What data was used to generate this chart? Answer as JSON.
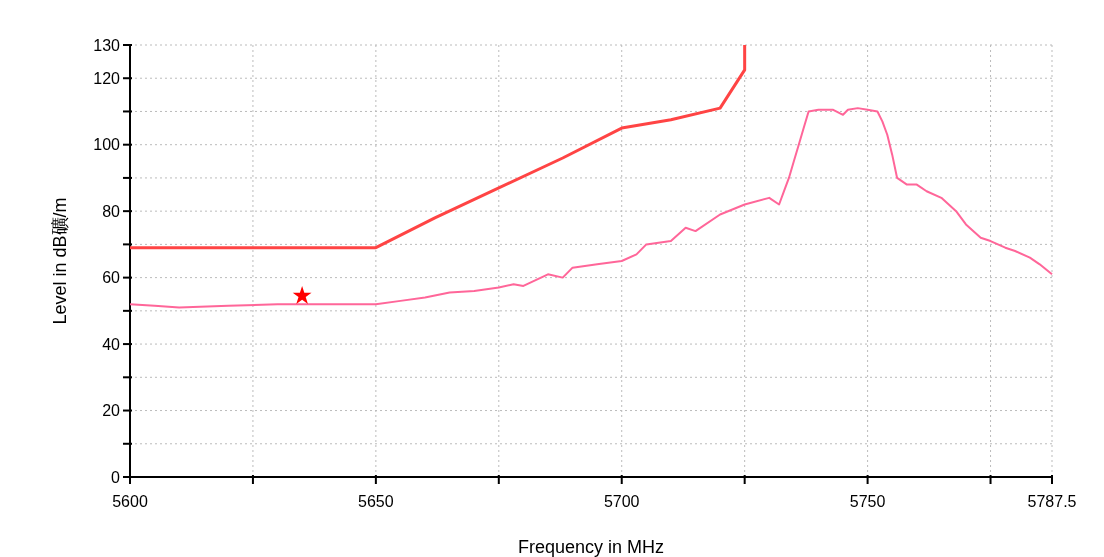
{
  "chart_data": {
    "type": "line",
    "xlabel": "Frequency in MHz",
    "ylabel": "Level in dB礦/m",
    "xlim": [
      5600,
      5787.5
    ],
    "ylim": [
      0,
      130
    ],
    "xticks": [
      5600,
      {
        "value": 5625,
        "label": null
      },
      5650,
      {
        "value": 5675,
        "label": null
      },
      5700,
      {
        "value": 5725,
        "label": null
      },
      5750,
      {
        "value": 5775,
        "label": null
      },
      5787.5
    ],
    "yticks": [
      0,
      {
        "value": 10,
        "label": null
      },
      20,
      {
        "value": 30,
        "label": null
      },
      40,
      {
        "value": 50,
        "label": null
      },
      60,
      {
        "value": 70,
        "label": null
      },
      80,
      {
        "value": 90,
        "label": null
      },
      100,
      {
        "value": 110,
        "label": null
      },
      120,
      130
    ],
    "grid": true,
    "series": [
      {
        "color": "#ff4444",
        "x": [
          5600,
          5650,
          5662,
          5675,
          5688,
          5700,
          5710,
          5720,
          5725,
          5725
        ],
        "values": [
          69,
          69,
          78,
          87,
          96,
          105,
          107.5,
          111,
          122.5,
          130
        ]
      },
      {
        "color": "#ff6699",
        "x": [
          5600,
          5605,
          5610,
          5620,
          5630,
          5640,
          5650,
          5655,
          5660,
          5665,
          5670,
          5675,
          5678,
          5680,
          5685,
          5688,
          5690,
          5695,
          5700,
          5703,
          5705,
          5710,
          5713,
          5715,
          5720,
          5725,
          5730,
          5732,
          5733,
          5734,
          5735,
          5736,
          5737,
          5738,
          5740,
          5743,
          5745,
          5746,
          5748,
          5750,
          5752,
          5753,
          5754,
          5755,
          5756,
          5758,
          5760,
          5762,
          5765,
          5768,
          5770,
          5773,
          5775,
          5778,
          5780,
          5783,
          5785,
          5787.5
        ],
        "values": [
          52,
          51.5,
          51,
          51.5,
          52,
          52,
          52,
          53,
          54,
          55.5,
          56,
          57,
          58,
          57.5,
          61,
          60,
          63,
          64,
          65,
          67,
          70,
          71,
          75,
          74,
          79,
          82,
          84,
          82,
          86,
          90,
          95,
          100,
          105,
          110,
          110.5,
          110.5,
          109,
          110.5,
          111,
          110.5,
          110,
          107,
          103,
          97,
          90,
          88,
          88,
          86,
          84,
          80,
          76,
          72,
          71,
          69,
          68,
          66,
          64,
          61
        ]
      },
      {
        "type": "scatter",
        "color": "#ff0000",
        "marker": "star",
        "x": [
          5635
        ],
        "values": [
          54.5
        ]
      }
    ]
  }
}
